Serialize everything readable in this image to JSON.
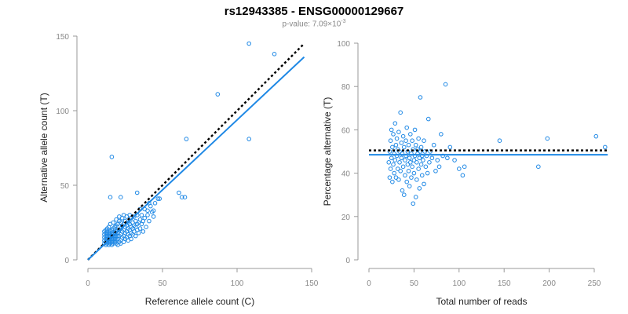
{
  "header": {
    "title": "rs12943385 - ENSG00000129667",
    "pvalue_prefix": "p-value: 7.09×10",
    "pvalue_exponent": "-3"
  },
  "colors": {
    "points": "#1e88e5",
    "fit_line": "#1e88e5",
    "reference_line": "#000000",
    "axis": "#999999"
  },
  "chart_data": [
    {
      "type": "scatter",
      "xlabel": "Reference allele count (C)",
      "ylabel": "Alternative allele count (T)",
      "xlim": [
        0,
        150
      ],
      "ylim": [
        0,
        150
      ],
      "xticks": [
        0,
        50,
        100,
        150
      ],
      "yticks": [
        0,
        50,
        100,
        150
      ],
      "fit_line": [
        [
          0,
          0
        ],
        [
          145,
          136
        ]
      ],
      "reference_line": [
        [
          0,
          0
        ],
        [
          145,
          145
        ]
      ],
      "points": [
        [
          11,
          11
        ],
        [
          11,
          13
        ],
        [
          11,
          15
        ],
        [
          11,
          17
        ],
        [
          11,
          19
        ],
        [
          12,
          10
        ],
        [
          12,
          12
        ],
        [
          12,
          14
        ],
        [
          12,
          16
        ],
        [
          12,
          18
        ],
        [
          12,
          20
        ],
        [
          13,
          11
        ],
        [
          13,
          13
        ],
        [
          13,
          15
        ],
        [
          13,
          17
        ],
        [
          13,
          19
        ],
        [
          13,
          21
        ],
        [
          14,
          10
        ],
        [
          14,
          12
        ],
        [
          14,
          14
        ],
        [
          14,
          16
        ],
        [
          14,
          18
        ],
        [
          14,
          22
        ],
        [
          15,
          11
        ],
        [
          15,
          13
        ],
        [
          15,
          15
        ],
        [
          15,
          17
        ],
        [
          15,
          19
        ],
        [
          15,
          24
        ],
        [
          16,
          10
        ],
        [
          16,
          12
        ],
        [
          16,
          14
        ],
        [
          16,
          16
        ],
        [
          16,
          18
        ],
        [
          16,
          20
        ],
        [
          17,
          11
        ],
        [
          17,
          13
        ],
        [
          17,
          15
        ],
        [
          17,
          17
        ],
        [
          17,
          21
        ],
        [
          17,
          25
        ],
        [
          18,
          12
        ],
        [
          18,
          14
        ],
        [
          18,
          16
        ],
        [
          18,
          18
        ],
        [
          18,
          22
        ],
        [
          19,
          11
        ],
        [
          19,
          13
        ],
        [
          19,
          15
        ],
        [
          19,
          17
        ],
        [
          19,
          19
        ],
        [
          19,
          23
        ],
        [
          19,
          27
        ],
        [
          20,
          10
        ],
        [
          20,
          14
        ],
        [
          20,
          16
        ],
        [
          20,
          18
        ],
        [
          20,
          20
        ],
        [
          20,
          24
        ],
        [
          21,
          12
        ],
        [
          21,
          16
        ],
        [
          21,
          20
        ],
        [
          21,
          26
        ],
        [
          21,
          29
        ],
        [
          22,
          11
        ],
        [
          22,
          13
        ],
        [
          22,
          17
        ],
        [
          22,
          21
        ],
        [
          22,
          25
        ],
        [
          23,
          15
        ],
        [
          23,
          19
        ],
        [
          23,
          23
        ],
        [
          23,
          28
        ],
        [
          24,
          12
        ],
        [
          24,
          16
        ],
        [
          24,
          20
        ],
        [
          24,
          24
        ],
        [
          24,
          30
        ],
        [
          25,
          14
        ],
        [
          25,
          18
        ],
        [
          25,
          22
        ],
        [
          25,
          26
        ],
        [
          26,
          15
        ],
        [
          26,
          19
        ],
        [
          26,
          23
        ],
        [
          26,
          29
        ],
        [
          27,
          13
        ],
        [
          27,
          17
        ],
        [
          27,
          21
        ],
        [
          27,
          25
        ],
        [
          28,
          16
        ],
        [
          28,
          20
        ],
        [
          28,
          24
        ],
        [
          28,
          30
        ],
        [
          29,
          14
        ],
        [
          29,
          18
        ],
        [
          29,
          22
        ],
        [
          29,
          28
        ],
        [
          30,
          17
        ],
        [
          30,
          21
        ],
        [
          30,
          25
        ],
        [
          31,
          19
        ],
        [
          31,
          23
        ],
        [
          31,
          29
        ],
        [
          32,
          16
        ],
        [
          32,
          22
        ],
        [
          32,
          26
        ],
        [
          33,
          20
        ],
        [
          33,
          24
        ],
        [
          33,
          30
        ],
        [
          34,
          18
        ],
        [
          34,
          25
        ],
        [
          35,
          21
        ],
        [
          35,
          27
        ],
        [
          35,
          34
        ],
        [
          36,
          24
        ],
        [
          36,
          30
        ],
        [
          37,
          19
        ],
        [
          37,
          26
        ],
        [
          38,
          28
        ],
        [
          38,
          34
        ],
        [
          39,
          22
        ],
        [
          40,
          30
        ],
        [
          40,
          33
        ],
        [
          41,
          26
        ],
        [
          42,
          36
        ],
        [
          43,
          32
        ],
        [
          44,
          29
        ],
        [
          45,
          38
        ],
        [
          47,
          41
        ],
        [
          48,
          41
        ],
        [
          16,
          69
        ],
        [
          15,
          42
        ],
        [
          22,
          42
        ],
        [
          33,
          45
        ],
        [
          41,
          38
        ],
        [
          44,
          33
        ],
        [
          63,
          42
        ],
        [
          61,
          45
        ],
        [
          65,
          42
        ],
        [
          66,
          81
        ],
        [
          87,
          111
        ],
        [
          108,
          145
        ],
        [
          108,
          81
        ],
        [
          125,
          138
        ]
      ]
    },
    {
      "type": "scatter",
      "xlabel": "Total number of reads",
      "ylabel": "Percentage alternative (T)",
      "xlim": [
        0,
        265
      ],
      "ylim": [
        0,
        100
      ],
      "xticks": [
        0,
        50,
        100,
        150,
        200,
        250
      ],
      "yticks": [
        0,
        20,
        40,
        60,
        80,
        100
      ],
      "fit_line": [
        [
          0,
          48.5
        ],
        [
          265,
          48.5
        ]
      ],
      "reference_line": [
        [
          0,
          50.5
        ],
        [
          265,
          50.5
        ]
      ],
      "points": [
        [
          22,
          45
        ],
        [
          23,
          50
        ],
        [
          23,
          38
        ],
        [
          24,
          55
        ],
        [
          24,
          42
        ],
        [
          25,
          60
        ],
        [
          25,
          47
        ],
        [
          26,
          36
        ],
        [
          26,
          52
        ],
        [
          27,
          44
        ],
        [
          27,
          58
        ],
        [
          28,
          40
        ],
        [
          28,
          49
        ],
        [
          29,
          63
        ],
        [
          29,
          46
        ],
        [
          30,
          53
        ],
        [
          30,
          38
        ],
        [
          31,
          48
        ],
        [
          31,
          56
        ],
        [
          32,
          42
        ],
        [
          32,
          51
        ],
        [
          33,
          37
        ],
        [
          33,
          59
        ],
        [
          34,
          45
        ],
        [
          34,
          50
        ],
        [
          35,
          68
        ],
        [
          35,
          41
        ],
        [
          36,
          54
        ],
        [
          36,
          47
        ],
        [
          37,
          32
        ],
        [
          37,
          49
        ],
        [
          38,
          57
        ],
        [
          38,
          43
        ],
        [
          39,
          30
        ],
        [
          39,
          52
        ],
        [
          40,
          46
        ],
        [
          40,
          39
        ],
        [
          41,
          55
        ],
        [
          41,
          48
        ],
        [
          42,
          36
        ],
        [
          42,
          61
        ],
        [
          43,
          44
        ],
        [
          43,
          50
        ],
        [
          44,
          41
        ],
        [
          44,
          53
        ],
        [
          45,
          47
        ],
        [
          45,
          34
        ],
        [
          46,
          58
        ],
        [
          46,
          45
        ],
        [
          47,
          49
        ],
        [
          47,
          38
        ],
        [
          48,
          55
        ],
        [
          48,
          43
        ],
        [
          49,
          26
        ],
        [
          49,
          51
        ],
        [
          50,
          46
        ],
        [
          50,
          40
        ],
        [
          51,
          60
        ],
        [
          51,
          48
        ],
        [
          52,
          29
        ],
        [
          52,
          53
        ],
        [
          53,
          45
        ],
        [
          53,
          37
        ],
        [
          54,
          51
        ],
        [
          54,
          49
        ],
        [
          55,
          42
        ],
        [
          55,
          56
        ],
        [
          56,
          47
        ],
        [
          56,
          33
        ],
        [
          57,
          50
        ],
        [
          57,
          75
        ],
        [
          58,
          44
        ],
        [
          58,
          52
        ],
        [
          59,
          39
        ],
        [
          59,
          48
        ],
        [
          60,
          46
        ],
        [
          61,
          55
        ],
        [
          61,
          35
        ],
        [
          62,
          50
        ],
        [
          63,
          43
        ],
        [
          64,
          48
        ],
        [
          65,
          40
        ],
        [
          66,
          65
        ],
        [
          67,
          45
        ],
        [
          68,
          50
        ],
        [
          70,
          47
        ],
        [
          72,
          53
        ],
        [
          74,
          41
        ],
        [
          76,
          46
        ],
        [
          78,
          43
        ],
        [
          80,
          58
        ],
        [
          82,
          48
        ],
        [
          85,
          81
        ],
        [
          87,
          47
        ],
        [
          90,
          52
        ],
        [
          95,
          46
        ],
        [
          100,
          42
        ],
        [
          104,
          39
        ],
        [
          106,
          43
        ],
        [
          145,
          55
        ],
        [
          188,
          43
        ],
        [
          198,
          56
        ],
        [
          252,
          57
        ],
        [
          262,
          52
        ]
      ]
    }
  ]
}
